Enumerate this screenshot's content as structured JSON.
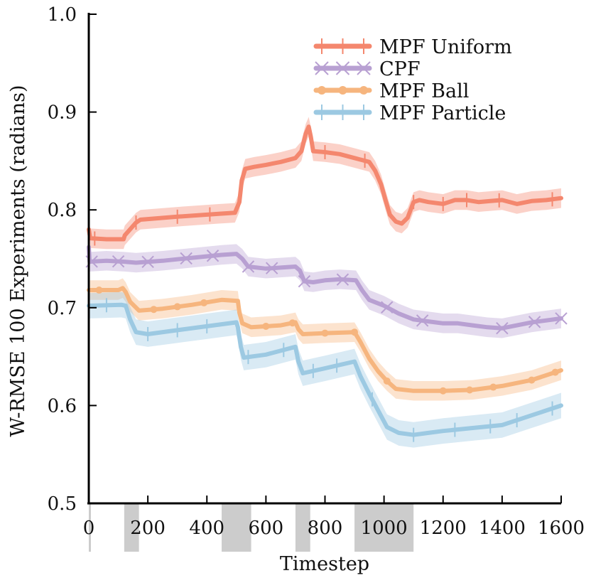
{
  "chart_data": {
    "type": "line",
    "title": "",
    "xlabel": "Timestep",
    "ylabel": "W-RMSE 100 Experiments (radians)",
    "xlim": [
      0,
      1600
    ],
    "ylim": [
      0.5,
      1.0
    ],
    "xticks": [
      0,
      200,
      400,
      600,
      800,
      1000,
      1200,
      1400,
      1600
    ],
    "xtick_labels": [
      "0",
      "200",
      "400",
      "600",
      "800",
      "1000",
      "1200",
      "1400",
      "1600"
    ],
    "yticks": [
      0.5,
      0.6,
      0.7,
      0.8,
      0.9,
      1.0
    ],
    "ytick_labels": [
      "0.5",
      "0.6",
      "0.7",
      "0.8",
      "0.9",
      "1.0"
    ],
    "grid": false,
    "legend_position": "top-right",
    "shaded_intervals": [
      [
        0,
        5
      ],
      [
        120,
        170
      ],
      [
        450,
        550
      ],
      [
        700,
        750
      ],
      [
        900,
        1100
      ]
    ],
    "series": [
      {
        "name": "MPF Uniform",
        "color": "#F4876E",
        "marker": "vline",
        "band": 0.01,
        "points": [
          [
            0,
            0.78
          ],
          [
            5,
            0.771
          ],
          [
            60,
            0.77
          ],
          [
            118,
            0.77
          ],
          [
            122,
            0.774
          ],
          [
            160,
            0.787
          ],
          [
            175,
            0.79
          ],
          [
            300,
            0.793
          ],
          [
            440,
            0.796
          ],
          [
            495,
            0.797
          ],
          [
            510,
            0.808
          ],
          [
            518,
            0.83
          ],
          [
            530,
            0.842
          ],
          [
            560,
            0.844
          ],
          [
            600,
            0.846
          ],
          [
            650,
            0.849
          ],
          [
            700,
            0.853
          ],
          [
            720,
            0.86
          ],
          [
            735,
            0.878
          ],
          [
            745,
            0.885
          ],
          [
            752,
            0.875
          ],
          [
            760,
            0.86
          ],
          [
            800,
            0.859
          ],
          [
            850,
            0.857
          ],
          [
            900,
            0.853
          ],
          [
            950,
            0.849
          ],
          [
            970,
            0.84
          ],
          [
            990,
            0.826
          ],
          [
            1005,
            0.81
          ],
          [
            1020,
            0.795
          ],
          [
            1040,
            0.788
          ],
          [
            1060,
            0.786
          ],
          [
            1080,
            0.792
          ],
          [
            1100,
            0.808
          ],
          [
            1120,
            0.81
          ],
          [
            1150,
            0.808
          ],
          [
            1200,
            0.806
          ],
          [
            1240,
            0.81
          ],
          [
            1280,
            0.81
          ],
          [
            1320,
            0.808
          ],
          [
            1360,
            0.809
          ],
          [
            1400,
            0.81
          ],
          [
            1450,
            0.806
          ],
          [
            1500,
            0.809
          ],
          [
            1550,
            0.81
          ],
          [
            1600,
            0.812
          ]
        ],
        "marker_x": [
          20,
          160,
          300,
          410,
          800,
          935,
          1100,
          1200,
          1280,
          1390,
          1570
        ]
      },
      {
        "name": "CPF",
        "color": "#B8A0D2",
        "marker": "x",
        "band": 0.01,
        "points": [
          [
            0,
            0.762
          ],
          [
            3,
            0.747
          ],
          [
            60,
            0.748
          ],
          [
            120,
            0.747
          ],
          [
            160,
            0.746
          ],
          [
            250,
            0.748
          ],
          [
            350,
            0.751
          ],
          [
            450,
            0.754
          ],
          [
            500,
            0.755
          ],
          [
            520,
            0.75
          ],
          [
            540,
            0.742
          ],
          [
            600,
            0.74
          ],
          [
            650,
            0.741
          ],
          [
            700,
            0.742
          ],
          [
            715,
            0.738
          ],
          [
            730,
            0.727
          ],
          [
            760,
            0.726
          ],
          [
            800,
            0.728
          ],
          [
            850,
            0.729
          ],
          [
            905,
            0.728
          ],
          [
            925,
            0.718
          ],
          [
            950,
            0.708
          ],
          [
            1000,
            0.702
          ],
          [
            1050,
            0.694
          ],
          [
            1100,
            0.688
          ],
          [
            1150,
            0.686
          ],
          [
            1200,
            0.684
          ],
          [
            1250,
            0.684
          ],
          [
            1300,
            0.682
          ],
          [
            1350,
            0.68
          ],
          [
            1400,
            0.679
          ],
          [
            1450,
            0.682
          ],
          [
            1500,
            0.685
          ],
          [
            1550,
            0.687
          ],
          [
            1600,
            0.689
          ]
        ],
        "marker_x": [
          10,
          100,
          200,
          330,
          420,
          540,
          620,
          730,
          860,
          1010,
          1130,
          1400,
          1510,
          1600
        ]
      },
      {
        "name": "MPF Ball",
        "color": "#F6B57E",
        "marker": "circle",
        "band": 0.01,
        "points": [
          [
            0,
            0.718
          ],
          [
            100,
            0.718
          ],
          [
            115,
            0.72
          ],
          [
            125,
            0.716
          ],
          [
            140,
            0.706
          ],
          [
            170,
            0.697
          ],
          [
            250,
            0.699
          ],
          [
            350,
            0.703
          ],
          [
            450,
            0.708
          ],
          [
            505,
            0.707
          ],
          [
            510,
            0.695
          ],
          [
            520,
            0.684
          ],
          [
            550,
            0.68
          ],
          [
            650,
            0.682
          ],
          [
            700,
            0.685
          ],
          [
            710,
            0.678
          ],
          [
            725,
            0.673
          ],
          [
            800,
            0.674
          ],
          [
            900,
            0.675
          ],
          [
            920,
            0.665
          ],
          [
            950,
            0.648
          ],
          [
            980,
            0.635
          ],
          [
            1010,
            0.625
          ],
          [
            1040,
            0.617
          ],
          [
            1100,
            0.615
          ],
          [
            1200,
            0.615
          ],
          [
            1300,
            0.616
          ],
          [
            1400,
            0.62
          ],
          [
            1500,
            0.626
          ],
          [
            1600,
            0.636
          ]
        ],
        "marker_x": [
          35,
          220,
          300,
          390,
          600,
          690,
          800,
          900,
          1010,
          1200,
          1290,
          1370,
          1500,
          1580
        ]
      },
      {
        "name": "MPF Particle",
        "color": "#9CC9E2",
        "marker": "vline",
        "band": 0.013,
        "points": [
          [
            0,
            0.702
          ],
          [
            110,
            0.703
          ],
          [
            125,
            0.702
          ],
          [
            140,
            0.688
          ],
          [
            160,
            0.675
          ],
          [
            200,
            0.673
          ],
          [
            300,
            0.677
          ],
          [
            400,
            0.681
          ],
          [
            500,
            0.685
          ],
          [
            505,
            0.68
          ],
          [
            515,
            0.66
          ],
          [
            525,
            0.649
          ],
          [
            600,
            0.652
          ],
          [
            700,
            0.66
          ],
          [
            710,
            0.645
          ],
          [
            725,
            0.633
          ],
          [
            800,
            0.638
          ],
          [
            900,
            0.645
          ],
          [
            920,
            0.63
          ],
          [
            950,
            0.612
          ],
          [
            980,
            0.595
          ],
          [
            1010,
            0.578
          ],
          [
            1050,
            0.572
          ],
          [
            1100,
            0.57
          ],
          [
            1150,
            0.572
          ],
          [
            1200,
            0.574
          ],
          [
            1300,
            0.577
          ],
          [
            1400,
            0.58
          ],
          [
            1500,
            0.59
          ],
          [
            1600,
            0.6
          ]
        ],
        "marker_x": [
          60,
          200,
          300,
          400,
          540,
          660,
          760,
          840,
          960,
          1100,
          1240,
          1360,
          1450,
          1570
        ]
      }
    ]
  }
}
